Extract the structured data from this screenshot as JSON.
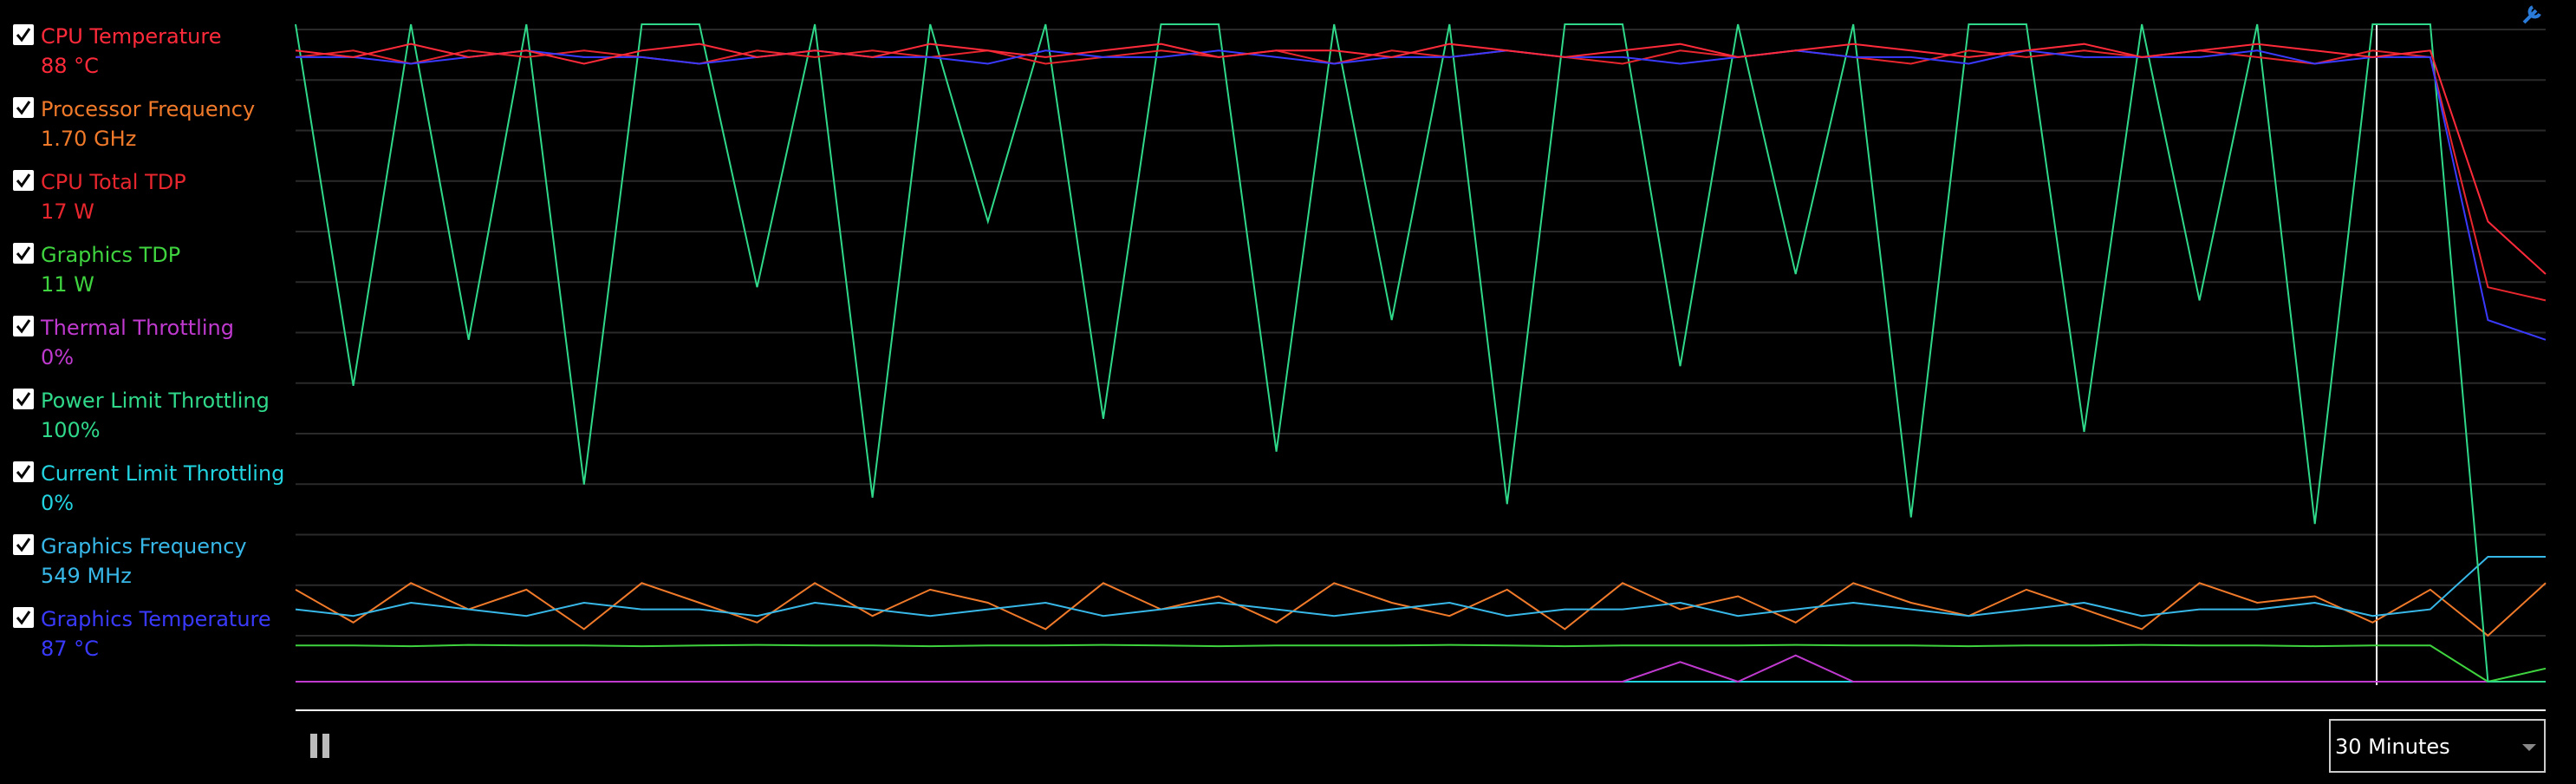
{
  "legend": [
    {
      "name": "CPU Temperature",
      "value": "88 °C",
      "color": "#ff2a3a",
      "values": [
        96,
        95,
        97,
        95,
        96,
        94,
        96,
        97,
        95,
        96,
        95,
        97,
        96,
        95,
        96,
        97,
        95,
        96,
        96,
        95,
        97,
        96,
        95,
        96,
        97,
        95,
        96,
        97,
        96,
        95,
        96,
        97,
        95,
        96,
        97,
        96,
        95,
        96,
        70,
        62
      ]
    },
    {
      "name": "Processor Frequency",
      "value": "1.70 GHz",
      "color": "#f07a2a",
      "values": [
        14,
        9,
        15,
        11,
        14,
        8,
        15,
        12,
        9,
        15,
        10,
        14,
        12,
        8,
        15,
        11,
        13,
        9,
        15,
        12,
        10,
        14,
        8,
        15,
        11,
        13,
        9,
        15,
        12,
        10,
        14,
        11,
        8,
        15,
        12,
        13,
        9,
        14,
        7,
        15
      ]
    },
    {
      "name": "CPU Total TDP",
      "value": "17 W",
      "color": "#e8262e",
      "values": [
        95,
        96,
        94,
        96,
        95,
        96,
        95,
        94,
        96,
        95,
        96,
        95,
        96,
        94,
        95,
        96,
        95,
        96,
        94,
        96,
        95,
        96,
        95,
        94,
        96,
        95,
        96,
        95,
        94,
        96,
        95,
        96,
        95,
        96,
        95,
        94,
        96,
        95,
        60,
        58
      ]
    },
    {
      "name": "Graphics TDP",
      "value": "11 W",
      "color": "#3fd43f",
      "values": [
        5.5,
        5.5,
        5.4,
        5.6,
        5.5,
        5.5,
        5.4,
        5.5,
        5.6,
        5.5,
        5.5,
        5.4,
        5.5,
        5.5,
        5.6,
        5.5,
        5.4,
        5.5,
        5.5,
        5.5,
        5.6,
        5.5,
        5.4,
        5.5,
        5.5,
        5.5,
        5.6,
        5.5,
        5.5,
        5.4,
        5.5,
        5.5,
        5.6,
        5.5,
        5.5,
        5.4,
        5.5,
        5.5,
        0,
        2
      ]
    },
    {
      "name": "Thermal Throttling",
      "value": "0%",
      "color": "#c03ad0",
      "values": [
        0,
        0,
        0,
        0,
        0,
        0,
        0,
        0,
        0,
        0,
        0,
        0,
        0,
        0,
        0,
        0,
        0,
        0,
        0,
        0,
        0,
        0,
        0,
        0,
        3,
        0,
        4,
        0,
        0,
        0,
        0,
        0,
        0,
        0,
        0,
        0,
        0,
        0,
        0,
        0
      ]
    },
    {
      "name": "Power Limit Throttling",
      "value": "100%",
      "color": "#30d88a",
      "values": [
        100,
        45,
        100,
        52,
        100,
        30,
        100,
        100,
        60,
        100,
        28,
        100,
        70,
        100,
        40,
        100,
        100,
        35,
        100,
        55,
        100,
        27,
        100,
        100,
        48,
        100,
        62,
        100,
        25,
        100,
        100,
        38,
        100,
        58,
        100,
        24,
        100,
        100,
        0,
        0
      ]
    },
    {
      "name": "Current Limit Throttling",
      "value": "0%",
      "color": "#22d4e0",
      "values": [
        0,
        0,
        0,
        0,
        0,
        0,
        0,
        0,
        0,
        0,
        0,
        0,
        0,
        0,
        0,
        0,
        0,
        0,
        0,
        0,
        0,
        0,
        0,
        0,
        0,
        0,
        0,
        0,
        0,
        0,
        0,
        0,
        0,
        0,
        0,
        0,
        0,
        0,
        0,
        0
      ]
    },
    {
      "name": "Graphics Frequency",
      "value": "549 MHz",
      "color": "#38b8e8",
      "values": [
        11,
        10,
        12,
        11,
        10,
        12,
        11,
        11,
        10,
        12,
        11,
        10,
        11,
        12,
        10,
        11,
        12,
        11,
        10,
        11,
        12,
        10,
        11,
        11,
        12,
        10,
        11,
        12,
        11,
        10,
        11,
        12,
        10,
        11,
        11,
        12,
        10,
        11,
        19,
        19
      ]
    },
    {
      "name": "Graphics Temperature",
      "value": "87 °C",
      "color": "#3a3aff",
      "values": [
        95,
        95,
        94,
        95,
        96,
        95,
        95,
        94,
        95,
        96,
        95,
        95,
        94,
        96,
        95,
        95,
        96,
        95,
        94,
        95,
        95,
        96,
        95,
        95,
        94,
        95,
        96,
        95,
        95,
        94,
        96,
        95,
        95,
        95,
        96,
        94,
        95,
        95,
        55,
        52
      ]
    }
  ],
  "ylim": [
    0,
    100
  ],
  "time_range": "30 Minutes"
}
